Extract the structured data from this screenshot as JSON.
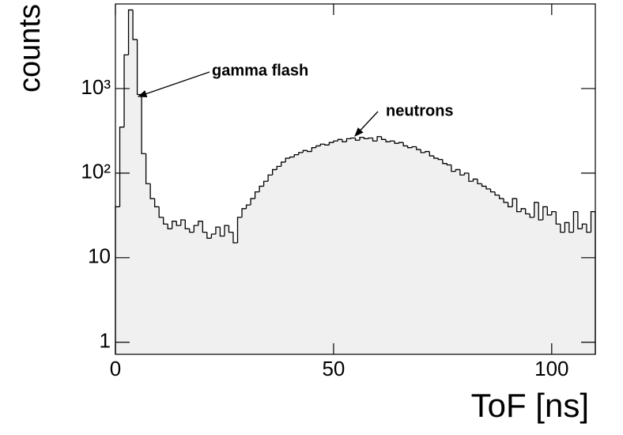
{
  "chart_data": {
    "type": "histogram",
    "x_label": "ToF [ns]",
    "y_label": "counts",
    "log_y": true,
    "fill_color": "#f0f0f0",
    "line_color": "#000000",
    "xlim": [
      0,
      110
    ],
    "xticks": [
      0,
      50,
      100
    ],
    "ylim": [
      0.72,
      10000
    ],
    "yticks": [
      1,
      10,
      {
        "value": 100,
        "label": "10²"
      },
      {
        "value": 1000,
        "label": "10³"
      }
    ],
    "bins": [
      0,
      1,
      2,
      3,
      4,
      5,
      6,
      7,
      8,
      9,
      10,
      11,
      12,
      13,
      14,
      15,
      16,
      17,
      18,
      19,
      20,
      21,
      22,
      23,
      24,
      25,
      26,
      27,
      28,
      29,
      30,
      31,
      32,
      33,
      34,
      35,
      36,
      37,
      38,
      39,
      40,
      41,
      42,
      43,
      44,
      45,
      46,
      47,
      48,
      49,
      50,
      51,
      52,
      53,
      54,
      55,
      56,
      57,
      58,
      59,
      60,
      61,
      62,
      63,
      64,
      65,
      66,
      67,
      68,
      69,
      70,
      71,
      72,
      73,
      74,
      75,
      76,
      77,
      78,
      79,
      80,
      81,
      82,
      83,
      84,
      85,
      86,
      87,
      88,
      89,
      90,
      91,
      92,
      93,
      94,
      95,
      96,
      97,
      98,
      99,
      100,
      101,
      102,
      103,
      104,
      105,
      106,
      107,
      108,
      109,
      110
    ],
    "values": [
      40,
      350,
      2500,
      8500,
      3800,
      850,
      170,
      75,
      50,
      40,
      30,
      25,
      22,
      27,
      24,
      28,
      22,
      20,
      24,
      27,
      20,
      17,
      19,
      23,
      18,
      24,
      20,
      15,
      30,
      38,
      42,
      50,
      60,
      70,
      80,
      95,
      110,
      120,
      135,
      150,
      155,
      165,
      175,
      185,
      180,
      200,
      210,
      220,
      215,
      230,
      240,
      250,
      235,
      255,
      260,
      245,
      265,
      255,
      260,
      240,
      270,
      250,
      235,
      240,
      225,
      230,
      210,
      200,
      205,
      190,
      175,
      180,
      160,
      150,
      145,
      130,
      125,
      105,
      110,
      95,
      100,
      80,
      85,
      75,
      70,
      65,
      60,
      55,
      50,
      45,
      40,
      50,
      35,
      38,
      33,
      30,
      45,
      28,
      40,
      32,
      35,
      25,
      20,
      26,
      20,
      35,
      22,
      25,
      20,
      35
    ],
    "annotations": [
      {
        "text": "gamma flash"
      },
      {
        "text": "neutrons"
      }
    ]
  }
}
